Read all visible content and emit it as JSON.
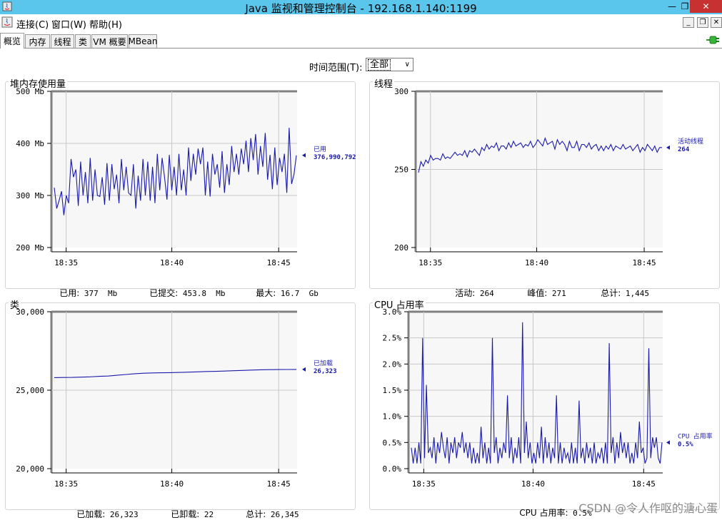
{
  "window": {
    "title": "Java 监视和管理控制台 - 192.168.1.140:1199"
  },
  "menu": {
    "items": [
      "连接(C)",
      "窗口(W)",
      "帮助(H)"
    ]
  },
  "tabs": [
    "概览",
    "内存",
    "线程",
    "类",
    "VM 概要",
    "MBean"
  ],
  "time_range": {
    "label": "时间范围(T):",
    "value": "全部"
  },
  "panels": {
    "heap": {
      "title": "堆内存使用量",
      "legend_name": "已用",
      "legend_value": "376,990,792",
      "stats": [
        {
          "label": "已用:",
          "value": "377  Mb"
        },
        {
          "label": "已提交:",
          "value": "453.8  Mb"
        },
        {
          "label": "最大:",
          "value": "16.7  Gb"
        }
      ]
    },
    "threads": {
      "title": "线程",
      "legend_name": "活动线程",
      "legend_value": "264",
      "stats": [
        {
          "label": "活动:",
          "value": "264"
        },
        {
          "label": "峰值:",
          "value": "271"
        },
        {
          "label": "总计:",
          "value": "1,445"
        }
      ]
    },
    "classes": {
      "title": "类",
      "legend_name": "已加载",
      "legend_value": "26,323",
      "stats": [
        {
          "label": "已加载:",
          "value": "26,323"
        },
        {
          "label": "已卸载:",
          "value": "22"
        },
        {
          "label": "总计:",
          "value": "26,345"
        }
      ]
    },
    "cpu": {
      "title": "CPU 占用率",
      "legend_name": "CPU 占用率",
      "legend_value": "0.5%",
      "stats": [
        {
          "label": "CPU 占用率:",
          "value": "0.5%"
        }
      ]
    }
  },
  "watermark": "CSDN @令人作呕的溏心蛋",
  "colors": {
    "series": "#1a1aaa",
    "titlebar": "#5bc6ec",
    "close": "#c7312f",
    "plot_bg": "#f7f7f7",
    "grid": "#c8c8c8"
  },
  "chart_data": [
    {
      "type": "line",
      "title": "堆内存使用量",
      "x_ticks": [
        "18:35",
        "18:40",
        "18:45"
      ],
      "y_ticks": [
        "200 Mb",
        "300 Mb",
        "400 Mb",
        "500 Mb"
      ],
      "ylim": [
        200,
        500
      ],
      "unit": "Mb",
      "grid": true,
      "legend": "right",
      "series": [
        {
          "name": "已用",
          "values": [
            315,
            275,
            290,
            308,
            262,
            300,
            285,
            370,
            335,
            350,
            280,
            365,
            300,
            345,
            285,
            372,
            290,
            350,
            300,
            298,
            335,
            282,
            362,
            290,
            360,
            312,
            340,
            285,
            370,
            310,
            355,
            305,
            300,
            360,
            275,
            338,
            290,
            370,
            300,
            365,
            290,
            355,
            285,
            380,
            310,
            372,
            335,
            292,
            378,
            310,
            355,
            300,
            380,
            310,
            350,
            300,
            392,
            328,
            380,
            340,
            390,
            360,
            392,
            300,
            365,
            298,
            380,
            340,
            360,
            315,
            385,
            305,
            360,
            320,
            395,
            345,
            380,
            340,
            390,
            360,
            405,
            345,
            410,
            368,
            418,
            340,
            395,
            355,
            420,
            330,
            378,
            312,
            392,
            320,
            372,
            345,
            380,
            305,
            430,
            322,
            340,
            377
          ]
        }
      ]
    },
    {
      "type": "line",
      "title": "线程",
      "x_ticks": [
        "18:35",
        "18:40",
        "18:45"
      ],
      "y_ticks": [
        "200",
        "250",
        "300"
      ],
      "ylim": [
        200,
        300
      ],
      "grid": true,
      "legend": "right",
      "series": [
        {
          "name": "活动线程",
          "values": [
            248,
            255,
            252,
            256,
            254,
            259,
            256,
            257,
            257,
            256,
            260,
            257,
            258,
            257,
            259,
            261,
            259,
            260,
            259,
            262,
            258,
            262,
            261,
            263,
            261,
            259,
            264,
            262,
            266,
            263,
            265,
            264,
            267,
            262,
            265,
            265,
            263,
            267,
            264,
            268,
            265,
            266,
            267,
            264,
            266,
            265,
            268,
            264,
            266,
            269,
            267,
            265,
            270,
            266,
            267,
            268,
            263,
            269,
            266,
            268,
            266,
            262,
            268,
            264,
            264,
            268,
            262,
            266,
            266,
            264,
            267,
            263,
            265,
            266,
            262,
            265,
            262,
            265,
            263,
            266,
            262,
            265,
            264,
            263,
            266,
            263,
            264,
            265,
            262,
            264,
            266,
            261,
            264,
            262,
            266,
            264,
            262,
            265,
            261,
            264,
            264
          ]
        }
      ]
    },
    {
      "type": "line",
      "title": "类",
      "x_ticks": [
        "18:35",
        "18:40",
        "18:45"
      ],
      "y_ticks": [
        "20,000",
        "25,000",
        "30,000"
      ],
      "ylim": [
        20000,
        30000
      ],
      "grid": true,
      "legend": "right",
      "series": [
        {
          "name": "已加载",
          "values": [
            25800,
            25810,
            25815,
            25830,
            25850,
            25880,
            25900,
            25950,
            26000,
            26050,
            26080,
            26100,
            26110,
            26120,
            26130,
            26150,
            26170,
            26190,
            26200,
            26220,
            26240,
            26260,
            26280,
            26300,
            26310,
            26315,
            26320,
            26323
          ]
        }
      ]
    },
    {
      "type": "line",
      "title": "CPU 占用率",
      "x_ticks": [
        "18:35",
        "18:40",
        "18:45"
      ],
      "y_ticks": [
        "0.0%",
        "0.5%",
        "1.0%",
        "1.5%",
        "2.0%",
        "2.5%",
        "3.0%"
      ],
      "ylim": [
        0,
        3.0
      ],
      "unit": "%",
      "grid": true,
      "legend": "right",
      "series": [
        {
          "name": "CPU 占用率",
          "values": [
            0.4,
            0.1,
            0.4,
            0.1,
            0.5,
            0.1,
            2.5,
            0.2,
            1.6,
            0.3,
            0.4,
            0.2,
            0.6,
            0.1,
            0.5,
            0.3,
            0.7,
            0.4,
            0.2,
            0.6,
            0.1,
            0.5,
            0.3,
            0.6,
            0.2,
            0.5,
            0.4,
            0.7,
            0.3,
            0.5,
            0.2,
            0.5,
            0.1,
            0.4,
            0.1,
            0.3,
            0.1,
            0.8,
            0.2,
            0.5,
            0.1,
            0.4,
            0.1,
            2.5,
            0.3,
            0.6,
            0.1,
            0.4,
            0.2,
            0.5,
            0.3,
            1.4,
            0.2,
            0.6,
            0.1,
            0.4,
            0.2,
            0.6,
            0.1,
            2.8,
            0.3,
            0.9,
            0.2,
            0.5,
            0.1,
            0.3,
            0.1,
            0.5,
            0.2,
            0.8,
            0.1,
            0.6,
            0.2,
            0.5,
            0.1,
            0.4,
            0.2,
            1.4,
            0.1,
            0.5,
            0.1,
            0.4,
            0.2,
            0.3,
            0.1,
            0.5,
            0.1,
            0.4,
            0.1,
            1.3,
            0.2,
            0.4,
            0.1,
            0.5,
            0.2,
            0.4,
            0.1,
            0.5,
            0.1,
            0.3,
            0.2,
            0.4,
            0.1,
            0.5,
            0.1,
            2.4,
            0.3,
            0.6,
            0.1,
            0.5,
            0.2,
            0.7,
            0.3,
            0.5,
            0.2,
            0.5,
            0.1,
            0.3,
            0.1,
            0.5,
            0.2,
            0.9,
            0.3,
            0.4,
            0.1,
            0.2,
            2.3,
            0.2,
            0.6,
            0.4,
            0.6,
            0.2,
            0.1,
            0.5
          ]
        }
      ]
    }
  ]
}
